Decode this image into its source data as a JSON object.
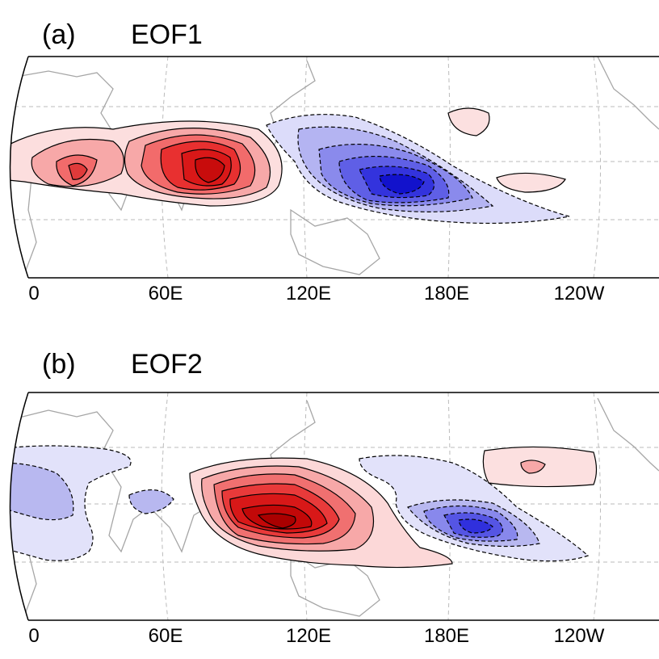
{
  "panels": [
    {
      "letter": "(a)",
      "title": "EOF1",
      "lon_labels": [
        "0",
        "60E",
        "120E",
        "180E",
        "120W"
      ]
    },
    {
      "letter": "(b)",
      "title": "EOF2",
      "lon_labels": [
        "0",
        "60E",
        "120E",
        "180E",
        "120W"
      ]
    }
  ],
  "colors": {
    "positive": "#ff0000",
    "negative": "#0000ff",
    "grid": "#bbbbbb",
    "coastline": "#a6a6a6"
  }
}
